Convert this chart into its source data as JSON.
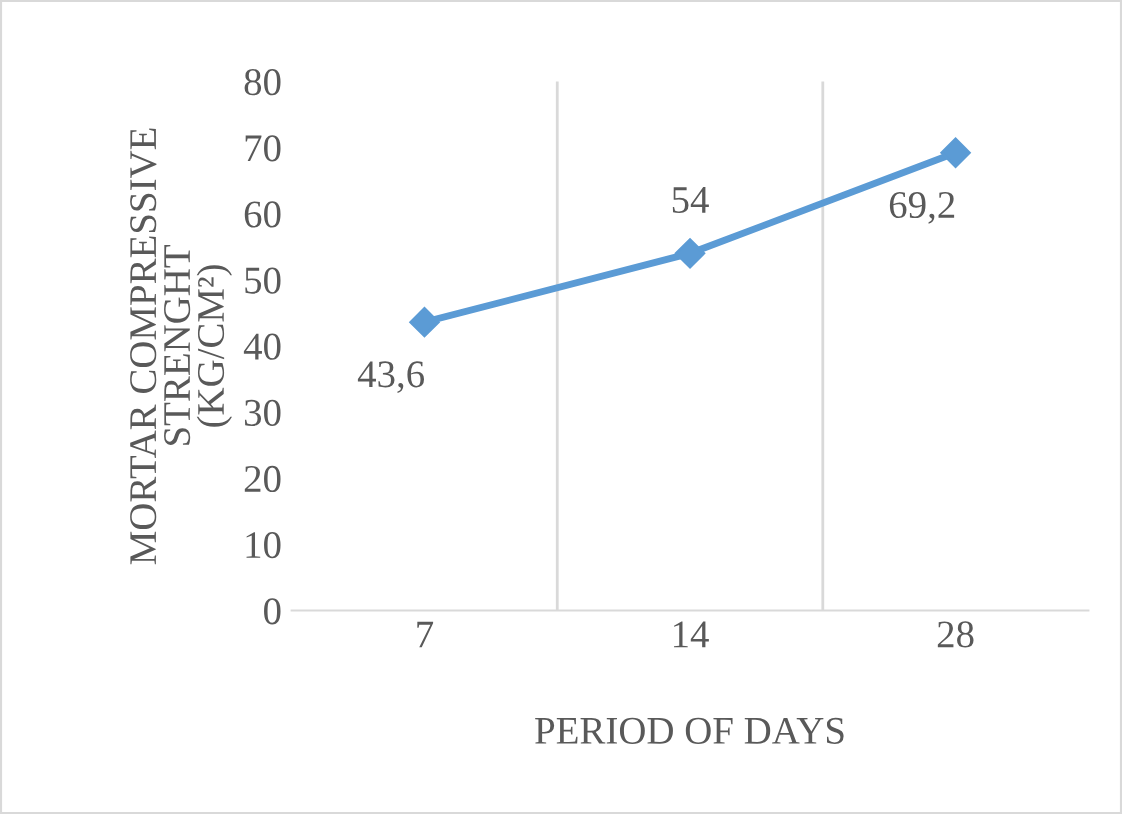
{
  "chart_data": {
    "type": "line",
    "categories": [
      "7",
      "14",
      "28"
    ],
    "series": [
      {
        "color": "#5b9bd5",
        "values": [
          43.6,
          54,
          69.2
        ],
        "value_labels": [
          "43,6",
          "54",
          "69,2"
        ]
      }
    ],
    "ylabel": "MORTAR COMPRESSIVE\nSTRENGHT\n(KG/CM²)",
    "xlabel": "PERIOD OF DAYS",
    "ylim": [
      0,
      80
    ],
    "yticks": [
      0,
      10,
      20,
      30,
      40,
      50,
      60,
      70,
      80
    ],
    "grid": "x",
    "marker": "diamond",
    "line_style": "solid",
    "legend": false
  }
}
